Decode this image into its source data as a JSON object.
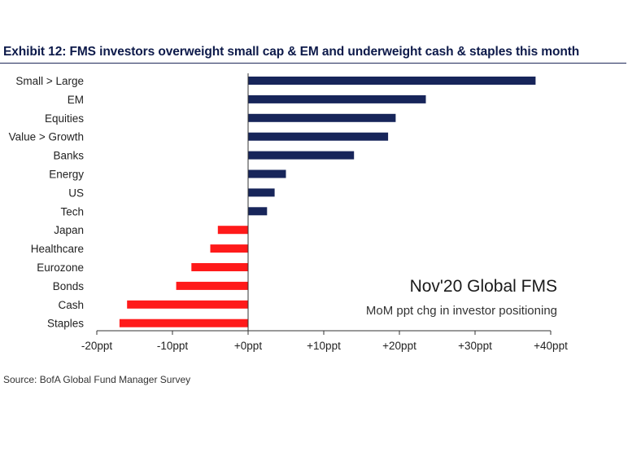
{
  "colors": {
    "positive": "#17255a",
    "negative": "#ff1a1a",
    "axis": "#333333",
    "title": "#0d1a4a"
  },
  "chart_data": {
    "type": "bar",
    "orientation": "horizontal",
    "title": "Exhibit 12: FMS investors overweight small cap & EM and underweight cash & staples this month",
    "annotation_title": "Nov'20 Global FMS",
    "annotation_subtitle": "MoM ppt chg in investor positioning",
    "source": "Source: BofA Global Fund Manager Survey",
    "categories": [
      "Small > Large",
      "EM",
      "Equities",
      "Value > Growth",
      "Banks",
      "Energy",
      "US",
      "Tech",
      "Japan",
      "Healthcare",
      "Eurozone",
      "Bonds",
      "Cash",
      "Staples"
    ],
    "values": [
      38,
      23.5,
      19.5,
      18.5,
      14,
      5,
      3.5,
      2.5,
      -4,
      -5,
      -7.5,
      -9.5,
      -16,
      -17
    ],
    "xlim": [
      -20,
      40
    ],
    "xticks": [
      -20,
      -10,
      0,
      10,
      20,
      30,
      40
    ],
    "xtick_labels": [
      "-20ppt",
      "-10ppt",
      "+0ppt",
      "+10ppt",
      "+20ppt",
      "+30ppt",
      "+40ppt"
    ],
    "grid": false,
    "legend": "none"
  }
}
